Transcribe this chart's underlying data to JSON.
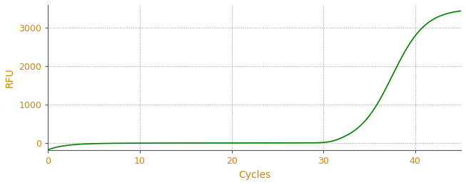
{
  "title": "",
  "xlabel": "Cycles",
  "ylabel": "RFU",
  "line_color": "#008000",
  "line_width": 1.2,
  "background_color": "#ffffff",
  "grid_color": "#999999",
  "xlim": [
    0,
    45
  ],
  "ylim": [
    -200,
    3600
  ],
  "xticks": [
    0,
    10,
    20,
    30,
    40
  ],
  "yticks": [
    0,
    1000,
    2000,
    3000
  ],
  "tick_color": "#cc8800",
  "label_color": "#cc8800",
  "spine_color": "#555555",
  "figsize": [
    6.53,
    2.6
  ],
  "dpi": 100
}
